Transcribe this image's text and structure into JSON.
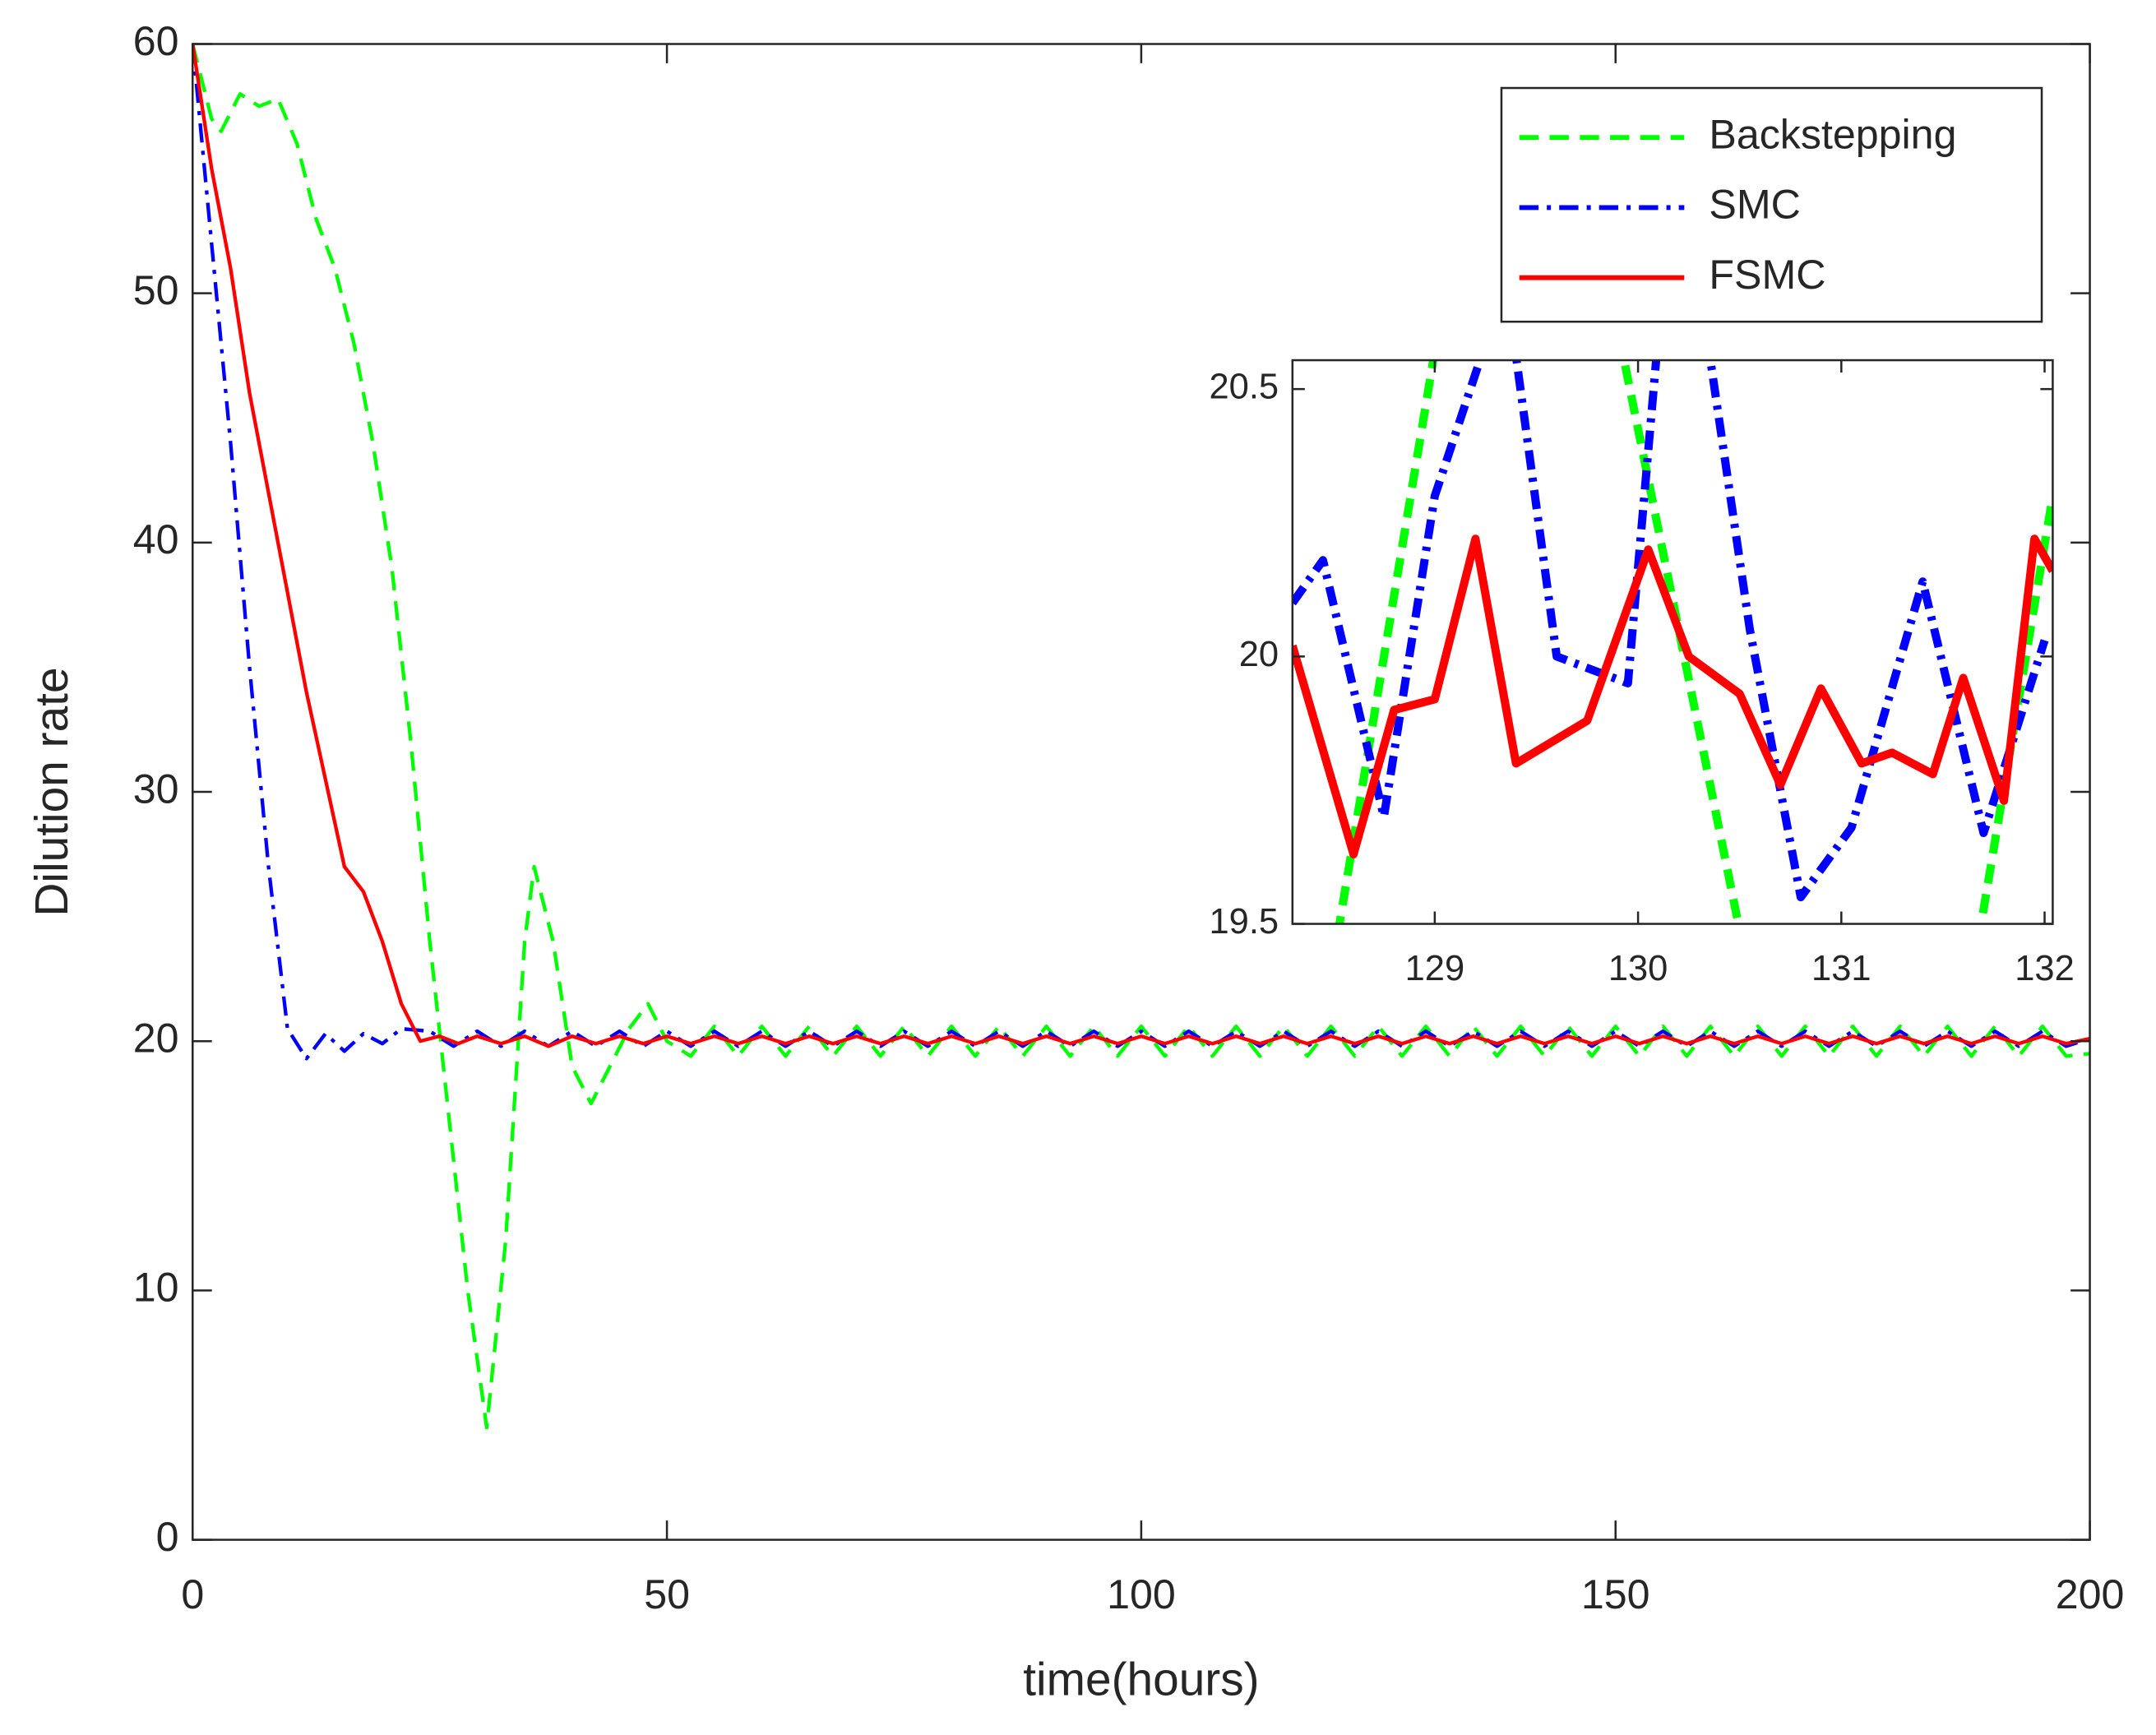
{
  "chart_data": [
    {
      "type": "line",
      "xlabel": "time(hours)",
      "ylabel": "Dilution rate",
      "xlim": [
        0,
        200
      ],
      "ylim": [
        0,
        60
      ],
      "xticks": [
        0,
        50,
        100,
        150,
        200
      ],
      "yticks": [
        0,
        10,
        20,
        30,
        40,
        50,
        60
      ],
      "legend": "upper right",
      "series": [
        {
          "name": "Backstepping",
          "color": "#00ff00",
          "style": "dashed",
          "x": [
            0,
            2,
            3,
            5,
            7,
            9,
            11,
            13,
            15,
            17,
            19,
            21,
            23,
            25,
            27,
            29,
            31,
            33,
            35,
            36,
            38,
            40,
            42,
            44,
            46,
            48,
            50,
            52.5,
            55,
            57.5,
            60,
            62.5,
            65,
            67.5,
            70,
            72.5,
            75,
            77.5,
            80,
            82.5,
            85,
            87.5,
            90,
            92.5,
            95,
            97.5,
            100,
            102.5,
            105,
            107.5,
            110,
            112.5,
            115,
            117.5,
            120,
            122.5,
            125,
            127.5,
            130,
            132.5,
            135,
            137.5,
            140,
            142.5,
            145,
            147.5,
            150,
            152.5,
            155,
            157.5,
            160,
            162.5,
            165,
            167.5,
            170,
            172.5,
            175,
            177.5,
            180,
            182.5,
            185,
            187.5,
            190,
            192.5,
            195,
            197.5,
            200
          ],
          "values": [
            60,
            57,
            56.5,
            58,
            57.5,
            57.8,
            56,
            53,
            51,
            48,
            44,
            39,
            32,
            24,
            17,
            10,
            4.5,
            12,
            24,
            27,
            24,
            19,
            17.5,
            19,
            20.5,
            21.5,
            20,
            19.4,
            20.6,
            19.4,
            20.6,
            19.4,
            20.6,
            19.4,
            20.6,
            19.4,
            20.6,
            19.4,
            20.6,
            19.4,
            20.6,
            19.4,
            20.6,
            19.4,
            20.6,
            19.4,
            20.6,
            19.4,
            20.6,
            19.4,
            20.6,
            19.4,
            20.6,
            19.4,
            20.6,
            19.4,
            20.6,
            19.4,
            20.6,
            19.4,
            20.6,
            19.4,
            20.6,
            19.4,
            20.6,
            19.4,
            20.6,
            19.4,
            20.6,
            19.4,
            20.6,
            19.4,
            20.6,
            19.4,
            20.6,
            19.4,
            20.6,
            19.4,
            20.6,
            19.4,
            20.6,
            19.4,
            20.6,
            19.4,
            20.6,
            19.4,
            19.5
          ]
        },
        {
          "name": "SMC",
          "color": "#0000ff",
          "style": "dashdot",
          "x": [
            0,
            2,
            4,
            6,
            8,
            10,
            12,
            14,
            16,
            18,
            20,
            22,
            25,
            27.5,
            30,
            32.5,
            35,
            37.5,
            40,
            42.5,
            45,
            47.5,
            50,
            52.5,
            55,
            57.5,
            60,
            62.5,
            65,
            67.5,
            70,
            72.5,
            75,
            77.5,
            80,
            82.5,
            85,
            87.5,
            90,
            92.5,
            95,
            97.5,
            100,
            102.5,
            105,
            107.5,
            110,
            112.5,
            115,
            117.5,
            120,
            122.5,
            125,
            127.5,
            130,
            132.5,
            135,
            137.5,
            140,
            142.5,
            145,
            147.5,
            150,
            152.5,
            155,
            157.5,
            160,
            162.5,
            165,
            167.5,
            170,
            172.5,
            175,
            177.5,
            180,
            182.5,
            185,
            187.5,
            190,
            192.5,
            195,
            197.5,
            200
          ],
          "values": [
            60,
            52,
            44,
            35,
            27,
            20.5,
            19.3,
            20.3,
            19.6,
            20.3,
            19.9,
            20.5,
            20.4,
            19.8,
            20.4,
            19.8,
            20.4,
            19.8,
            20.4,
            19.8,
            20.4,
            19.8,
            20.4,
            19.8,
            20.4,
            19.8,
            20.4,
            19.8,
            20.4,
            19.8,
            20.4,
            19.8,
            20.4,
            19.8,
            20.4,
            19.8,
            20.4,
            19.8,
            20.4,
            19.8,
            20.4,
            19.8,
            20.4,
            19.8,
            20.4,
            19.8,
            20.4,
            19.8,
            20.4,
            19.8,
            20.4,
            19.8,
            20.4,
            19.8,
            20.4,
            19.8,
            20.4,
            19.8,
            20.4,
            19.8,
            20.4,
            19.8,
            20.4,
            19.8,
            20.4,
            19.8,
            20.4,
            19.8,
            20.4,
            19.8,
            20.4,
            19.8,
            20.4,
            19.8,
            20.4,
            19.8,
            20.4,
            19.8,
            20.4,
            19.8,
            20.4,
            19.8,
            20.1
          ]
        },
        {
          "name": "FSMC",
          "color": "#ff0000",
          "style": "solid",
          "x": [
            0,
            2,
            4,
            6,
            8,
            10,
            12,
            14,
            16,
            18,
            20,
            22,
            24,
            26,
            28,
            30,
            32.5,
            35,
            37.5,
            40,
            42.5,
            45,
            47.5,
            50,
            52.5,
            55,
            57.5,
            60,
            62.5,
            65,
            67.5,
            70,
            72.5,
            75,
            77.5,
            80,
            82.5,
            85,
            87.5,
            90,
            92.5,
            95,
            97.5,
            100,
            102.5,
            105,
            107.5,
            110,
            112.5,
            115,
            117.5,
            120,
            122.5,
            125,
            127.5,
            130,
            132.5,
            135,
            137.5,
            140,
            142.5,
            145,
            147.5,
            150,
            152.5,
            155,
            157.5,
            160,
            162.5,
            165,
            167.5,
            170,
            172.5,
            175,
            177.5,
            180,
            182.5,
            185,
            187.5,
            190,
            192.5,
            195,
            197.5,
            200
          ],
          "values": [
            60,
            55,
            51,
            46,
            42,
            38,
            34,
            30.5,
            27,
            26,
            24,
            21.5,
            20,
            20.2,
            19.9,
            20.2,
            19.9,
            20.2,
            19.8,
            20.2,
            19.9,
            20.2,
            19.9,
            20.2,
            19.9,
            20.2,
            19.9,
            20.2,
            19.9,
            20.2,
            19.9,
            20.2,
            19.9,
            20.2,
            19.9,
            20.2,
            19.9,
            20.2,
            19.9,
            20.2,
            19.9,
            20.2,
            19.9,
            20.2,
            19.9,
            20.2,
            19.9,
            20.2,
            19.9,
            20.2,
            19.9,
            20.2,
            19.9,
            20.2,
            19.9,
            20.2,
            19.9,
            20.2,
            19.9,
            20.2,
            19.9,
            20.2,
            19.9,
            20.2,
            19.9,
            20.2,
            19.9,
            20.2,
            19.9,
            20.2,
            19.9,
            20.2,
            19.9,
            20.2,
            19.9,
            20.2,
            19.9,
            20.2,
            19.9,
            20.2,
            19.9,
            20.2,
            19.9,
            20.1
          ]
        }
      ]
    },
    {
      "type": "line",
      "xlim": [
        128.3,
        132.04
      ],
      "ylim": [
        19.5,
        20.554
      ],
      "xticks": [
        129,
        130,
        131,
        132
      ],
      "yticks": [
        19.5,
        20,
        20.5
      ],
      "series": [
        {
          "color": "#00ff00",
          "style": "dashed",
          "x": [
            128.4,
            129.1,
            129.8,
            130.6,
            131.0,
            131.6,
            132.04
          ],
          "values": [
            19.2,
            20.8,
            20.8,
            19.3,
            19.0,
            19.3,
            20.3
          ]
        },
        {
          "color": "#0000ff",
          "style": "dashdot",
          "x": [
            128.3,
            128.45,
            128.75,
            129.0,
            129.35,
            129.6,
            129.95,
            130.1,
            130.3,
            130.55,
            130.8,
            131.05,
            131.4,
            131.7,
            132.0
          ],
          "values": [
            20.1,
            20.18,
            19.7,
            20.3,
            20.7,
            20.0,
            19.95,
            20.6,
            20.7,
            20.05,
            19.55,
            19.68,
            20.14,
            19.67,
            20.03
          ]
        },
        {
          "color": "#ff0000",
          "style": "solid",
          "x": [
            128.3,
            128.6,
            128.8,
            129.0,
            129.2,
            129.4,
            129.75,
            130.05,
            130.25,
            130.5,
            130.7,
            130.9,
            131.1,
            131.25,
            131.45,
            131.6,
            131.8,
            131.95,
            132.04
          ],
          "values": [
            20.02,
            19.63,
            19.9,
            19.92,
            20.22,
            19.8,
            19.88,
            20.2,
            20.0,
            19.93,
            19.76,
            19.94,
            19.8,
            19.82,
            19.78,
            19.96,
            19.73,
            20.22,
            20.16
          ]
        }
      ]
    }
  ]
}
